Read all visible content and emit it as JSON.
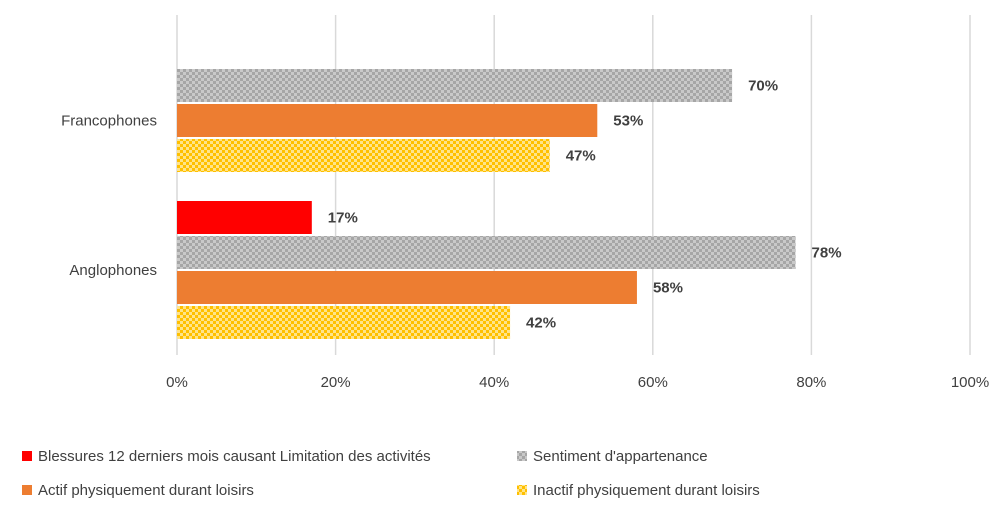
{
  "chart_data": {
    "type": "bar",
    "orientation": "horizontal",
    "title": "",
    "xlabel": "",
    "ylabel": "",
    "xlim": [
      0,
      100
    ],
    "x_ticks": [
      "0%",
      "20%",
      "40%",
      "60%",
      "80%",
      "100%"
    ],
    "grid": true,
    "legend_position": "bottom",
    "categories": [
      "Francophones",
      "Anglophones"
    ],
    "series": [
      {
        "name": "Blessures 12 derniers mois causant Limitation des activités",
        "values": [
          null,
          17
        ],
        "labels": [
          "",
          "17%"
        ],
        "color": "#ff0000",
        "pattern": "solid"
      },
      {
        "name": "Sentiment d'appartenance",
        "values": [
          70,
          78
        ],
        "labels": [
          "70%",
          "78%"
        ],
        "color": "#a6a6a6",
        "pattern": "checker"
      },
      {
        "name": "Actif physiquement durant loisirs",
        "values": [
          53,
          58
        ],
        "labels": [
          "53%",
          "58%"
        ],
        "color": "#ed7d31",
        "pattern": "solid"
      },
      {
        "name": "Inactif physiquement durant loisirs",
        "values": [
          47,
          42
        ],
        "labels": [
          "47%",
          "42%"
        ],
        "color": "#ffc000",
        "pattern": "checker"
      }
    ]
  }
}
